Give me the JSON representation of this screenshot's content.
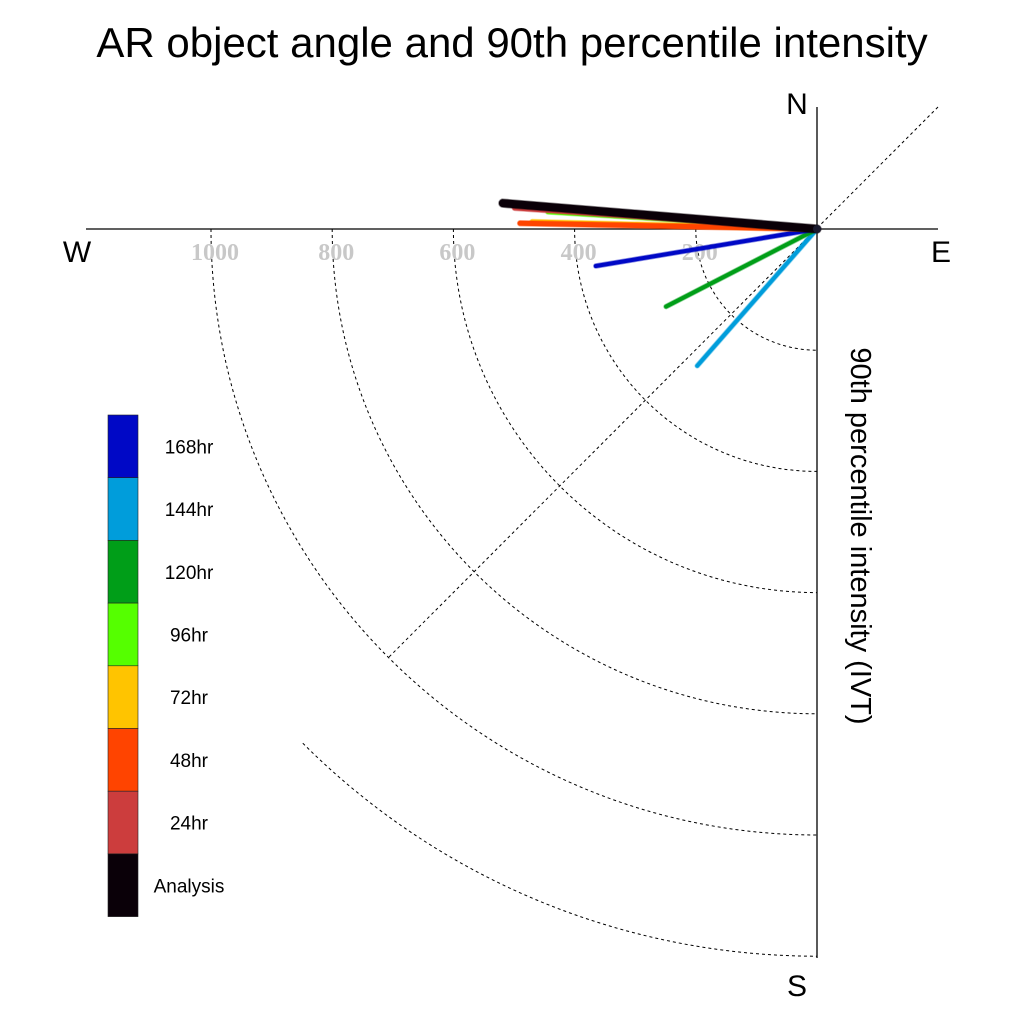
{
  "chart_data": {
    "type": "polar-vector",
    "title": "AR object angle and 90th percentile intensity",
    "ylabel": "90th percentile intensity (IVT)",
    "compass": {
      "north": "N",
      "south": "S",
      "east": "E",
      "west": "W"
    },
    "radial_ticks": [
      200,
      400,
      600,
      800,
      1000
    ],
    "radial_tick_labels": [
      "200",
      "400",
      "600",
      "800",
      "1000"
    ],
    "rmax": 1200,
    "series": [
      {
        "name": "Analysis",
        "color": "#0a0008",
        "intensity": 520,
        "angle_deg": 175.3,
        "width": 8
      },
      {
        "name": "24hr",
        "color": "#cc3d3d",
        "intensity": 500,
        "angle_deg": 176.0,
        "width": 5
      },
      {
        "name": "48hr",
        "color": "#ff4400",
        "intensity": 490,
        "angle_deg": 178.9,
        "width": 5
      },
      {
        "name": "72hr",
        "color": "#ffc400",
        "intensity": 470,
        "angle_deg": 178.6,
        "width": 5
      },
      {
        "name": "96hr",
        "color": "#55ff00",
        "intensity": 445,
        "angle_deg": 176.4,
        "width": 4
      },
      {
        "name": "120hr",
        "color": "#009e18",
        "intensity": 280,
        "angle_deg": 207.2,
        "width": 4
      },
      {
        "name": "144hr",
        "color": "#009ddb",
        "intensity": 300,
        "angle_deg": 228.8,
        "width": 4
      },
      {
        "name": "168hr",
        "color": "#0008c6",
        "intensity": 370,
        "angle_deg": 189.5,
        "width": 4
      }
    ],
    "legend_order": [
      "168hr",
      "144hr",
      "120hr",
      "96hr",
      "72hr",
      "48hr",
      "24hr",
      "Analysis"
    ],
    "grid": true,
    "legend_position": "left"
  }
}
